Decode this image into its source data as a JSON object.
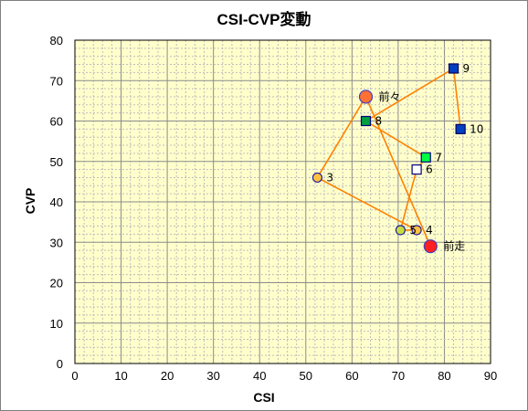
{
  "chart_data": {
    "type": "scatter",
    "title": "CSI-CVP変動",
    "xlabel": "CSI",
    "ylabel": "CVP",
    "xlim": [
      0,
      90
    ],
    "ylim": [
      0,
      80
    ],
    "x_ticks": [
      "0",
      "10",
      "20",
      "30",
      "40",
      "50",
      "60",
      "70",
      "80",
      "90"
    ],
    "y_ticks": [
      "0",
      "10",
      "20",
      "30",
      "40",
      "50",
      "60",
      "70",
      "80"
    ],
    "grid": true,
    "plot_background": "#ffffcc",
    "line_color": "#ff8000",
    "path_order": [
      "前々",
      "3",
      "4",
      "5",
      "6",
      "7",
      "8",
      "9",
      "10"
    ],
    "extra_segment": [
      "前々",
      "前走"
    ],
    "points": [
      {
        "label": "前々",
        "x": 63,
        "y": 66,
        "shape": "circle-large",
        "fill": "#ff7033",
        "stroke": "#4040c0"
      },
      {
        "label": "3",
        "x": 52.5,
        "y": 46,
        "shape": "circle",
        "fill": "#ffc040",
        "stroke": "#2020a0"
      },
      {
        "label": "4",
        "x": 74,
        "y": 33,
        "shape": "circle",
        "fill": "#ffc040",
        "stroke": "#2020a0"
      },
      {
        "label": "5",
        "x": 70.5,
        "y": 33,
        "shape": "circle",
        "fill": "#c8dc40",
        "stroke": "#2020a0"
      },
      {
        "label": "6",
        "x": 74,
        "y": 48,
        "shape": "square",
        "fill": "#ffffff",
        "stroke": "#000080"
      },
      {
        "label": "7",
        "x": 76,
        "y": 51,
        "shape": "square",
        "fill": "#00ff40",
        "stroke": "#000080"
      },
      {
        "label": "8",
        "x": 63,
        "y": 60,
        "shape": "square",
        "fill": "#00a040",
        "stroke": "#000080"
      },
      {
        "label": "9",
        "x": 82,
        "y": 73,
        "shape": "square",
        "fill": "#0040c0",
        "stroke": "#000060"
      },
      {
        "label": "10",
        "x": 83.5,
        "y": 58,
        "shape": "square",
        "fill": "#0040c0",
        "stroke": "#000060"
      },
      {
        "label": "前走",
        "x": 77,
        "y": 29,
        "shape": "circle-large",
        "fill": "#ff2020",
        "stroke": "#4040c0"
      }
    ]
  }
}
